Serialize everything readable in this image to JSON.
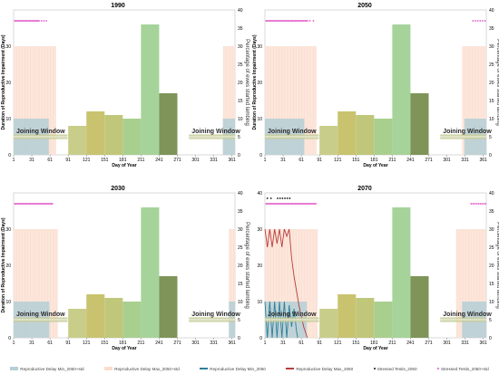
{
  "colors": {
    "bars": [
      "#c9cd8a",
      "#c9c36f",
      "#c1c77a",
      "#a9cf8f",
      "#a6d39a",
      "#7e9458",
      "#dfe6c1"
    ],
    "orange_fill": "#fbdccc",
    "blue_fill": "#b4cfd6",
    "blue_line": "#2d7f9a",
    "red_line": "#b73c3c",
    "window_fill": "#c8cc9a",
    "window_line": "#ffffff",
    "dot_pink": "#e052c4",
    "dot_black": "#111111"
  },
  "chart_data": [
    {
      "type": "bar",
      "title": "1990",
      "xlabel": "Day of Year",
      "ylabel": "Duration of Reproductive Impairment (Days)",
      "ylabel_right": "Percentage of ewes started lambing",
      "xlim": [
        1,
        366
      ],
      "ylim": [
        0,
        40
      ],
      "ylim_right": [
        0,
        40
      ],
      "x_ticks": [
        1,
        31,
        61,
        91,
        121,
        151,
        181,
        211,
        241,
        271,
        301,
        331,
        361
      ],
      "y_ticks": [
        0,
        10,
        20,
        30
      ],
      "y_ticks_right": [
        0,
        5,
        10,
        15,
        20,
        25,
        30,
        35,
        40
      ],
      "lambing_bars": {
        "x": [
          91,
          121,
          151,
          181,
          211,
          241
        ],
        "values": [
          8,
          12,
          11,
          10,
          36,
          17
        ]
      },
      "joining_window": {
        "label": "Joining Window",
        "segments": [
          [
            1,
            90
          ],
          [
            290,
            366
          ]
        ],
        "y": 5
      },
      "orange_band": {
        "segments": [
          [
            1,
            71
          ],
          [
            346,
            366
          ]
        ],
        "y": 30
      },
      "blue_band": {
        "segments": [
          [
            1,
            59
          ],
          [
            346,
            366
          ]
        ],
        "y": 10
      },
      "stressed_tests_pink": {
        "days": [
          3,
          5,
          7,
          9,
          11,
          13,
          15,
          17,
          19,
          21,
          23,
          25,
          27,
          29,
          31,
          33,
          35,
          37,
          39,
          41,
          43,
          47,
          51,
          55
        ],
        "y": 37
      },
      "stressed_tests_black": {
        "days": [],
        "y": 38.5
      },
      "delay_lines": []
    },
    {
      "type": "bar",
      "title": "2050",
      "xlabel": "Day of Year",
      "ylabel": "Duration of Reproductive Impairment (Days)",
      "ylabel_right": "Percentage of ewes started lambing",
      "xlim": [
        1,
        366
      ],
      "ylim": [
        0,
        40
      ],
      "ylim_right": [
        0,
        40
      ],
      "x_ticks": [
        1,
        31,
        61,
        91,
        121,
        151,
        181,
        211,
        241,
        271,
        301,
        331,
        361
      ],
      "y_ticks": [
        0,
        10,
        20,
        30
      ],
      "y_ticks_right": [
        0,
        5,
        10,
        15,
        20,
        25,
        30,
        35,
        40
      ],
      "lambing_bars": {
        "x": [
          91,
          121,
          151,
          181,
          211,
          241
        ],
        "values": [
          8,
          12,
          11,
          10,
          36,
          17
        ]
      },
      "joining_window": {
        "label": "Joining Window",
        "segments": [
          [
            1,
            90
          ],
          [
            290,
            366
          ]
        ],
        "y": 5
      },
      "orange_band": {
        "segments": [
          [
            1,
            86
          ],
          [
            326,
            366
          ]
        ],
        "y": 30
      },
      "blue_band": {
        "segments": [
          [
            1,
            66
          ],
          [
            330,
            366
          ]
        ],
        "y": 10
      },
      "stressed_tests_pink": {
        "days": [
          3,
          5,
          7,
          9,
          11,
          13,
          15,
          17,
          19,
          21,
          23,
          25,
          27,
          29,
          31,
          33,
          35,
          37,
          39,
          41,
          43,
          45,
          47,
          49,
          51,
          53,
          55,
          57,
          59,
          61,
          63,
          65,
          67,
          69,
          71,
          75,
          81,
          344,
          348,
          352,
          356,
          360,
          364
        ],
        "y": 37
      },
      "stressed_tests_black": {
        "days": [],
        "y": 38.5
      },
      "delay_lines": []
    },
    {
      "type": "bar",
      "title": "2030",
      "xlabel": "Day of Year",
      "ylabel": "Duration of Reproductive Impairment (Days)",
      "ylabel_right": "Percentage of ewes started lambing",
      "xlim": [
        1,
        366
      ],
      "ylim": [
        0,
        40
      ],
      "ylim_right": [
        0,
        40
      ],
      "x_ticks": [
        1,
        31,
        61,
        91,
        121,
        151,
        181,
        211,
        241,
        271,
        301,
        331,
        361
      ],
      "y_ticks": [
        0,
        10,
        20,
        30
      ],
      "y_ticks_right": [
        0,
        5,
        10,
        15,
        20,
        25,
        30,
        35,
        40
      ],
      "lambing_bars": {
        "x": [
          91,
          121,
          151,
          181,
          211,
          241
        ],
        "values": [
          8,
          12,
          11,
          10,
          36,
          17
        ]
      },
      "joining_window": {
        "label": "Joining Window",
        "segments": [
          [
            1,
            90
          ],
          [
            290,
            366
          ]
        ],
        "y": 5
      },
      "orange_band": {
        "segments": [
          [
            1,
            74
          ],
          [
            356,
            366
          ]
        ],
        "y": 30
      },
      "blue_band": {
        "segments": [
          [
            1,
            60
          ],
          [
            356,
            366
          ]
        ],
        "y": 10
      },
      "stressed_tests_pink": {
        "days": [
          3,
          5,
          7,
          9,
          11,
          13,
          15,
          17,
          19,
          21,
          23,
          25,
          27,
          29,
          31,
          33,
          35,
          37,
          39,
          41,
          43,
          45,
          47,
          49,
          51,
          53,
          55,
          57,
          59,
          61,
          63,
          65
        ],
        "y": 37
      },
      "stressed_tests_black": {
        "days": [],
        "y": 38.5
      },
      "delay_lines": []
    },
    {
      "type": "bar",
      "title": "2070",
      "xlabel": "Day of Year",
      "ylabel": "",
      "ylabel_right": "Percentage of ewes started lambing",
      "xlim": [
        1,
        366
      ],
      "ylim": [
        0,
        40
      ],
      "ylim_right": [
        0,
        40
      ],
      "x_ticks": [
        1,
        31,
        61,
        91,
        121,
        151,
        181,
        211,
        241,
        271,
        301,
        331,
        361
      ],
      "y_ticks": [
        0,
        10,
        20,
        30,
        40
      ],
      "y_ticks_right": [
        0,
        5,
        10,
        15,
        20,
        25,
        30,
        35,
        40
      ],
      "lambing_bars": {
        "x": [
          91,
          121,
          151,
          181,
          211,
          241
        ],
        "values": [
          8,
          12,
          11,
          10,
          36,
          17
        ]
      },
      "joining_window": {
        "label": "Joining Window",
        "segments": [
          [
            1,
            90
          ],
          [
            290,
            366
          ]
        ],
        "y": 5
      },
      "orange_band": {
        "segments": [
          [
            1,
            88
          ],
          [
            316,
            366
          ]
        ],
        "y": 30
      },
      "blue_band": {
        "segments": [
          [
            1,
            70
          ],
          [
            326,
            366
          ]
        ],
        "y": 10
      },
      "stressed_tests_pink": {
        "days": [
          3,
          5,
          7,
          9,
          11,
          13,
          15,
          17,
          19,
          21,
          23,
          25,
          27,
          29,
          31,
          33,
          35,
          37,
          39,
          41,
          43,
          45,
          47,
          49,
          51,
          53,
          55,
          57,
          59,
          61,
          63,
          65,
          67,
          69,
          71,
          73,
          75,
          77,
          79,
          81,
          83,
          85,
          341,
          344,
          347,
          350,
          353,
          356,
          359,
          362,
          365
        ],
        "y": 37
      },
      "stressed_tests_black": {
        "days": [
          5,
          11,
          22,
          26,
          30,
          34,
          38,
          42
        ],
        "y": 38.5
      },
      "delay_lines": [
        {
          "name": "Reproductive Delay Min_2050",
          "color": "blue",
          "x": [
            1,
            5,
            9,
            13,
            17,
            21,
            25,
            29,
            33,
            37,
            41,
            45,
            49,
            53,
            55
          ],
          "y": [
            10,
            0,
            10,
            0,
            10,
            0,
            10,
            0,
            10,
            0,
            9,
            3,
            8,
            2,
            0
          ]
        },
        {
          "name": "Reproductive Delay Max_2050",
          "color": "red",
          "x": [
            1,
            5,
            9,
            13,
            17,
            21,
            25,
            29,
            33,
            37,
            41,
            45,
            49,
            53,
            57,
            61,
            65,
            71
          ],
          "y": [
            30,
            25,
            30,
            25,
            30,
            26,
            30,
            25,
            30,
            28,
            30,
            22,
            17,
            13,
            9,
            6,
            3,
            0
          ]
        }
      ]
    }
  ],
  "legend": [
    {
      "label": "Reproductive Delay Min_2050+std",
      "kind": "swatch",
      "color": "#b4cfd6"
    },
    {
      "label": "Reproductive Delay Max_2050+std",
      "kind": "swatch",
      "color": "#fbdccc"
    },
    {
      "label": "Reproductive Delay Min_2050",
      "kind": "line",
      "color": "#2d7f9a"
    },
    {
      "label": "Reproductive Delay Max_2050",
      "kind": "line",
      "color": "#b73c3c"
    },
    {
      "label": "Stressed Testis_2050",
      "kind": "dot",
      "color": "#111111"
    },
    {
      "label": "Stressed Testis_2050+std",
      "kind": "dot",
      "color": "#e052c4"
    }
  ]
}
